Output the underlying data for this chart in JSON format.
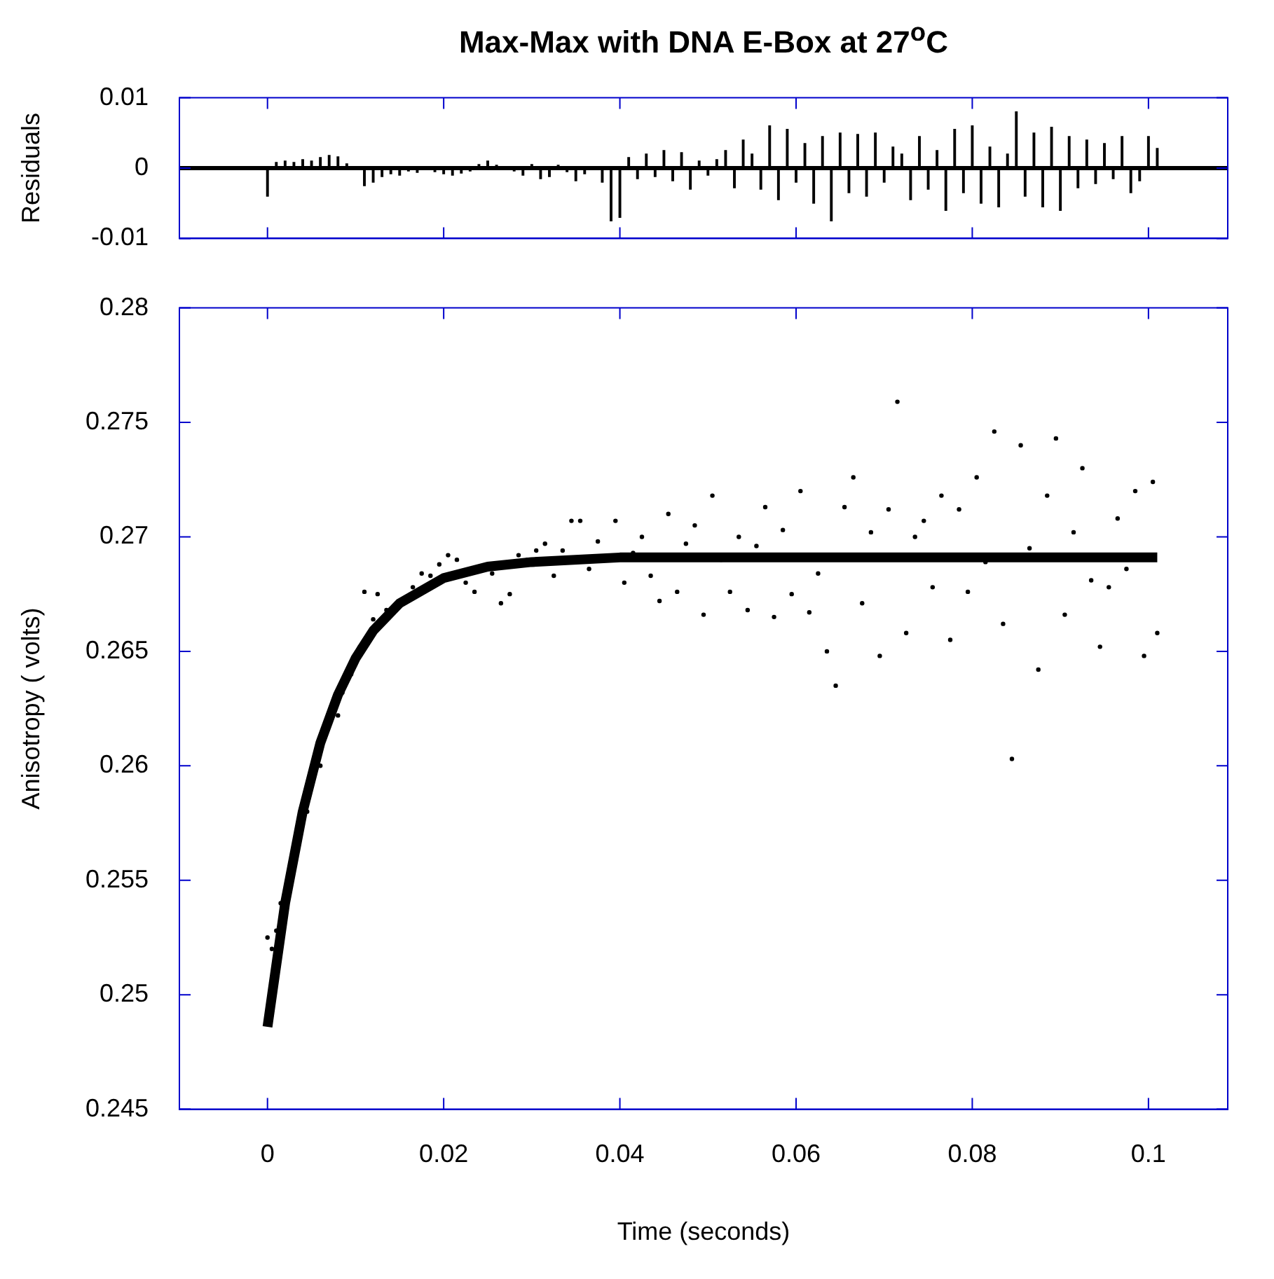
{
  "chart_data": [
    {
      "type": "bar",
      "title": "Max-Max with DNA E-Box at 27$^{o}$C",
      "ylabel": "Residuals",
      "xlim": [
        -0.01,
        0.109
      ],
      "xticks": [
        0,
        0.02,
        0.04,
        0.06,
        0.08,
        0.1
      ],
      "ylim": [
        -0.01,
        0.01
      ],
      "yticks": [
        -0.01,
        0,
        0.01
      ],
      "tick_labels": "y",
      "color": "#000000",
      "ref_lines": [
        {
          "axis": "y",
          "value": 0,
          "color": "#000000"
        }
      ],
      "x": [
        0,
        0.001,
        0.002,
        0.003,
        0.004,
        0.005,
        0.006,
        0.007,
        0.008,
        0.009,
        0.01,
        0.011,
        0.012,
        0.013,
        0.014,
        0.015,
        0.016,
        0.017,
        0.018,
        0.019,
        0.02,
        0.021,
        0.022,
        0.023,
        0.024,
        0.025,
        0.026,
        0.027,
        0.028,
        0.029,
        0.03,
        0.031,
        0.032,
        0.033,
        0.034,
        0.035,
        0.036,
        0.037,
        0.038,
        0.039,
        0.04,
        0.041,
        0.042,
        0.043,
        0.044,
        0.045,
        0.046,
        0.047,
        0.048,
        0.049,
        0.05,
        0.051,
        0.052,
        0.053,
        0.054,
        0.055,
        0.056,
        0.057,
        0.058,
        0.059,
        0.06,
        0.061,
        0.062,
        0.063,
        0.064,
        0.065,
        0.066,
        0.067,
        0.068,
        0.069,
        0.07,
        0.071,
        0.072,
        0.073,
        0.074,
        0.075,
        0.076,
        0.077,
        0.078,
        0.079,
        0.08,
        0.081,
        0.082,
        0.083,
        0.084,
        0.085,
        0.086,
        0.087,
        0.088,
        0.089,
        0.09,
        0.091,
        0.092,
        0.093,
        0.094,
        0.095,
        0.096,
        0.097,
        0.098,
        0.099,
        0.1,
        0.101
      ],
      "values": [
        -0.004,
        0.0008,
        0.001,
        0.0008,
        0.0012,
        0.001,
        0.0015,
        0.0018,
        0.0016,
        0.0006,
        null,
        -0.0025,
        -0.002,
        -0.0012,
        -0.0008,
        -0.001,
        -0.0004,
        -0.0006,
        null,
        -0.0005,
        -0.0008,
        -0.001,
        -0.0007,
        -0.0004,
        0.0005,
        0.001,
        0.0004,
        null,
        -0.0004,
        -0.001,
        0.0005,
        -0.0015,
        -0.0012,
        0.0004,
        -0.0005,
        -0.0018,
        -0.0008,
        -0.0002,
        -0.002,
        -0.0075,
        -0.007,
        0.0015,
        -0.0015,
        0.002,
        -0.0012,
        0.0025,
        -0.0018,
        0.0022,
        -0.003,
        0.001,
        -0.001,
        0.0012,
        0.0025,
        -0.0028,
        0.004,
        0.002,
        -0.003,
        0.006,
        -0.0045,
        0.0055,
        -0.002,
        0.0035,
        -0.005,
        0.0045,
        -0.0075,
        0.005,
        -0.0035,
        0.0048,
        -0.004,
        0.005,
        -0.002,
        0.003,
        0.002,
        -0.0045,
        0.0045,
        -0.003,
        0.0025,
        -0.006,
        0.0055,
        -0.0035,
        0.006,
        -0.005,
        0.003,
        -0.0055,
        0.002,
        0.008,
        -0.004,
        0.005,
        -0.0055,
        0.0058,
        -0.006,
        0.0045,
        -0.0028,
        0.004,
        -0.0022,
        0.0035,
        -0.0015,
        0.0045,
        -0.0035,
        -0.0018,
        0.0045,
        0.0028
      ]
    },
    {
      "type": "scatter",
      "xlabel": "Time (seconds)",
      "ylabel": "Anisotropy ( volts)",
      "xlim": [
        -0.01,
        0.109
      ],
      "xticks": [
        0,
        0.02,
        0.04,
        0.06,
        0.08,
        0.1
      ],
      "ylim": [
        0.245,
        0.28
      ],
      "yticks": [
        0.245,
        0.25,
        0.255,
        0.26,
        0.265,
        0.27,
        0.275,
        0.28
      ],
      "series": [
        {
          "type": "scatter",
          "marker": "circle",
          "color": "#000000",
          "x": [
            0,
            0.0005,
            0.001,
            0.0015,
            0.0045,
            0.006,
            0.008,
            0.0085,
            0.0095,
            0.0105,
            0.011,
            0.012,
            0.0125,
            0.0135,
            0.0165,
            0.0175,
            0.0185,
            0.0195,
            0.0205,
            0.0215,
            0.0225,
            0.0235,
            0.0255,
            0.0265,
            0.0275,
            0.0285,
            0.0295,
            0.0305,
            0.0315,
            0.0325,
            0.0335,
            0.0345,
            0.0355,
            0.0365,
            0.0375,
            0.0395,
            0.0405,
            0.0415,
            0.0425,
            0.0435,
            0.0445,
            0.0455,
            0.0465,
            0.0475,
            0.0485,
            0.0495,
            0.0505,
            0.0515,
            0.0525,
            0.0535,
            0.0545,
            0.0555,
            0.0565,
            0.0575,
            0.0585,
            0.0595,
            0.0605,
            0.0615,
            0.0625,
            0.0635,
            0.0645,
            0.0655,
            0.0665,
            0.0675,
            0.0685,
            0.0695,
            0.0705,
            0.0715,
            0.0725,
            0.0735,
            0.0745,
            0.0755,
            0.0765,
            0.0775,
            0.0785,
            0.0795,
            0.0805,
            0.0815,
            0.0825,
            0.0835,
            0.0845,
            0.0855,
            0.0865,
            0.0875,
            0.0885,
            0.0895,
            0.0905,
            0.0915,
            0.0925,
            0.0935,
            0.0945,
            0.0955,
            0.0965,
            0.0975,
            0.0985,
            0.0995,
            0.1005,
            0.101
          ],
          "values": [
            0.2525,
            0.252,
            0.2528,
            0.254,
            0.258,
            0.26,
            0.2622,
            0.2632,
            0.264,
            0.2652,
            0.2676,
            0.2664,
            0.2675,
            0.2668,
            0.2678,
            0.2684,
            0.2683,
            0.2688,
            0.2692,
            0.269,
            0.268,
            0.2676,
            0.2684,
            0.2671,
            0.2675,
            0.2692,
            0.269,
            0.2694,
            0.2697,
            0.2683,
            0.2694,
            0.2707,
            0.2707,
            0.2686,
            0.2698,
            0.2707,
            0.268,
            0.2693,
            0.27,
            0.2683,
            0.2672,
            0.271,
            0.2676,
            0.2697,
            0.2705,
            0.2666,
            0.2718,
            0.269,
            0.2676,
            0.27,
            0.2668,
            0.2696,
            0.2713,
            0.2665,
            0.2703,
            0.2675,
            0.272,
            0.2667,
            0.2684,
            0.265,
            0.2635,
            0.2713,
            0.2726,
            0.2671,
            0.2702,
            0.2648,
            0.2712,
            0.2759,
            0.2658,
            0.27,
            0.2707,
            0.2678,
            0.2718,
            0.2655,
            0.2712,
            0.2676,
            0.2726,
            0.2689,
            0.2746,
            0.2662,
            0.2603,
            0.274,
            0.2695,
            0.2642,
            0.2718,
            0.2743,
            0.2666,
            0.2702,
            0.273,
            0.2681,
            0.2652,
            0.2678,
            0.2708,
            0.2686,
            0.272,
            0.2648,
            0.2724,
            0.2658
          ]
        },
        {
          "type": "line",
          "color": "#000000",
          "x": [
            0,
            0.002,
            0.004,
            0.006,
            0.008,
            0.01,
            0.012,
            0.015,
            0.02,
            0.025,
            0.03,
            0.04,
            0.05,
            0.07,
            0.101
          ],
          "values": [
            0.2486,
            0.254,
            0.258,
            0.261,
            0.2631,
            0.2647,
            0.2659,
            0.2671,
            0.2682,
            0.2687,
            0.2689,
            0.2691,
            0.2691,
            0.2691,
            0.2691
          ]
        }
      ]
    }
  ]
}
